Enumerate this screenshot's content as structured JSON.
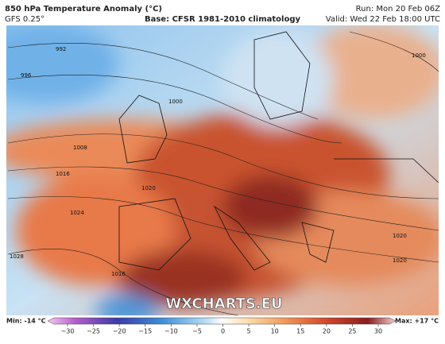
{
  "header": {
    "title": "850 hPa Temperature Anomaly (°C)",
    "model": "GFS 0.25°",
    "base": "Base: CFSR 1981-2010 climatology",
    "run": "Run: Mon 20 Feb 06Z",
    "valid": "Valid: Wed 22 Feb 18:00 UTC"
  },
  "map": {
    "watermark": "WXCHARTS.EU",
    "isobar_labels": [
      "992",
      "996",
      "1000",
      "1008",
      "1016",
      "1020",
      "1024",
      "1028",
      "1000",
      "1020",
      "1020",
      "1016"
    ]
  },
  "colorbar": {
    "min_label": "Min: -14 °C",
    "max_label": "Max: +17 °C",
    "ticks": [
      {
        "value": -30,
        "label": "−30"
      },
      {
        "value": -25,
        "label": "−25"
      },
      {
        "value": -20,
        "label": "−20"
      },
      {
        "value": -15,
        "label": "−15"
      },
      {
        "value": -10,
        "label": "−10"
      },
      {
        "value": -5,
        "label": "−5"
      },
      0,
      5,
      10,
      15,
      20,
      25,
      30
    ]
  }
}
